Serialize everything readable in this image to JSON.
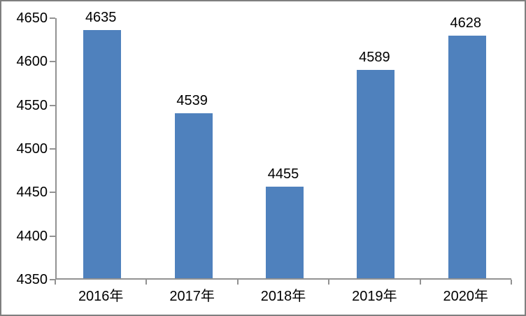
{
  "chart_data": {
    "type": "bar",
    "categories": [
      "2016年",
      "2017年",
      "2018年",
      "2019年",
      "2020年"
    ],
    "values": [
      4635,
      4539,
      4455,
      4589,
      4628
    ],
    "data_labels": [
      "4635",
      "4539",
      "4455",
      "4589",
      "4628"
    ],
    "yticks": [
      4350,
      4400,
      4450,
      4500,
      4550,
      4600,
      4650
    ],
    "ytick_labels": [
      "4350",
      "4400",
      "4450",
      "4500",
      "4550",
      "4600",
      "4650"
    ],
    "ylim": [
      4350,
      4650
    ],
    "title": "",
    "xlabel": "",
    "ylabel": "",
    "grid": false,
    "legend": false,
    "bar_color": "#4F81BD",
    "axis_color": "#929292",
    "frame_border_color": "#7F7F7F",
    "text_color": "#000000"
  }
}
